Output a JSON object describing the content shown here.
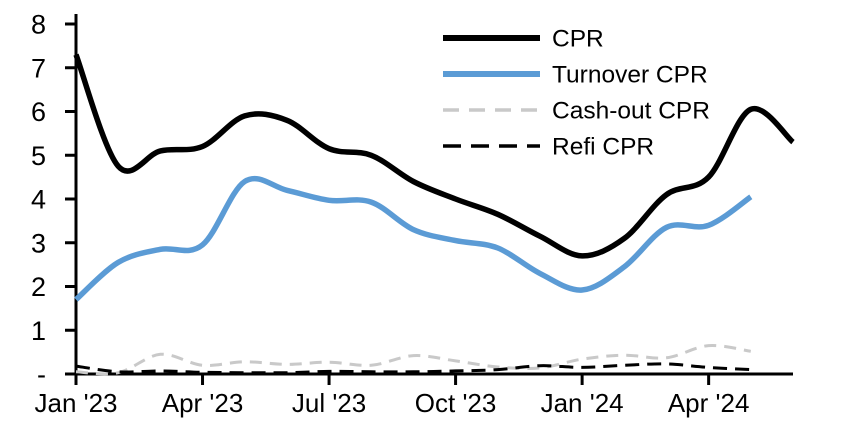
{
  "chart_data": {
    "type": "line",
    "title": "",
    "categories": [
      "Jan '23",
      "Feb '23",
      "Mar '23",
      "Apr '23",
      "May '23",
      "Jun '23",
      "Jul '23",
      "Aug '23",
      "Sep '23",
      "Oct '23",
      "Nov '23",
      "Dec '23",
      "Jan '24",
      "Feb '24",
      "Mar '24",
      "Apr '24",
      "May '24",
      "Jun '24"
    ],
    "x_tick_labels": [
      "Jan '23",
      "Apr '23",
      "Jul '23",
      "Oct '23",
      "Jan '24",
      "Apr '24"
    ],
    "x_tick_month_indexes": [
      0,
      3,
      6,
      9,
      12,
      15
    ],
    "y_axis": {
      "min": 0,
      "max": 8,
      "ticks": [
        0,
        1,
        2,
        3,
        4,
        5,
        6,
        7,
        8
      ],
      "zero_label": "-"
    },
    "grid": false,
    "legend": {
      "position": "inside-top-center",
      "items": [
        "CPR",
        "Turnover CPR",
        "Cash-out CPR",
        "Refi CPR"
      ]
    },
    "series": [
      {
        "name": "CPR",
        "color": "#000000",
        "style": "solid",
        "values": [
          7.3,
          4.75,
          5.1,
          5.2,
          5.9,
          5.8,
          5.15,
          5.0,
          4.4,
          4.0,
          3.65,
          3.15,
          2.7,
          3.1,
          4.1,
          4.5,
          6.05,
          5.3
        ]
      },
      {
        "name": "Turnover CPR",
        "color": "#5B9BD5",
        "style": "solid",
        "values": [
          1.7,
          2.55,
          2.85,
          2.95,
          4.4,
          4.2,
          3.97,
          3.93,
          3.3,
          3.05,
          2.88,
          2.3,
          1.92,
          2.45,
          3.35,
          3.4,
          4.05,
          null
        ]
      },
      {
        "name": "Cash-out CPR",
        "color": "#C9C9C9",
        "style": "dashed",
        "values": [
          0.05,
          0.03,
          0.45,
          0.2,
          0.28,
          0.22,
          0.27,
          0.2,
          0.42,
          0.3,
          0.16,
          0.14,
          0.34,
          0.43,
          0.37,
          0.65,
          0.52,
          null
        ]
      },
      {
        "name": "Refi CPR",
        "color": "#000000",
        "style": "dashed",
        "values": [
          0.18,
          0.05,
          0.07,
          0.04,
          0.03,
          0.03,
          0.06,
          0.05,
          0.05,
          0.07,
          0.1,
          0.19,
          0.15,
          0.2,
          0.23,
          0.15,
          0.1,
          null
        ]
      }
    ]
  },
  "colors": {
    "axis": "#000000",
    "text": "#000000",
    "background": "#ffffff",
    "turnover_blue": "#5B9BD5",
    "cashout_gray": "#C9C9C9"
  }
}
